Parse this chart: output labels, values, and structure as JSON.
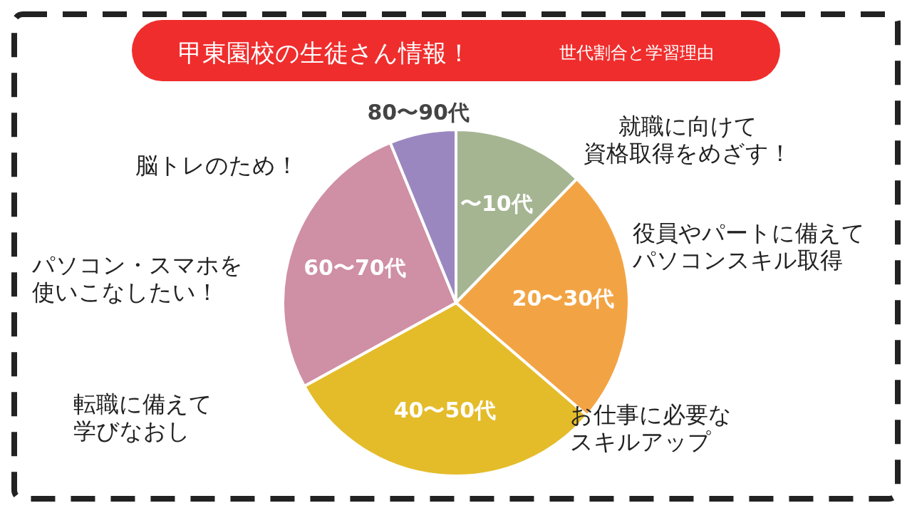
{
  "chart_data": {
    "type": "pie",
    "title": "甲東園校の生徒さん情報！",
    "subtitle": "世代割合と学習理由",
    "categories": [
      "〜10代",
      "20〜30代",
      "40〜50代",
      "60〜70代",
      "80〜90代"
    ],
    "values": [
      12.3,
      24,
      30.7,
      26.8,
      6.2
    ],
    "colors": [
      "#a5b592",
      "#f2a444",
      "#e4bc2a",
      "#cf8fa5",
      "#9b87c0"
    ],
    "annotations": [
      "就職に向けて資格取得をめざす！",
      "役員やパートに備えてパソコンスキル取得",
      "お仕事に必要なスキルアップ",
      "転職に備えて学びなおし",
      "パソコン・スマホを使いこなしたい！",
      "脳トレのため！"
    ]
  }
}
